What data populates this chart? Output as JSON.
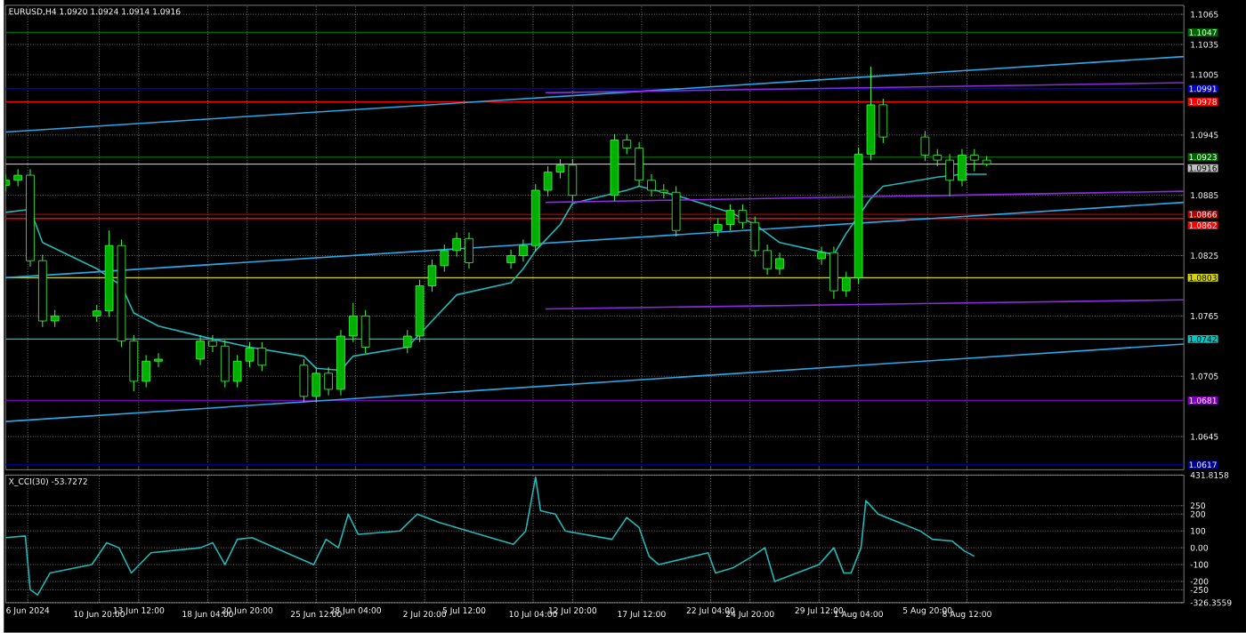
{
  "chart_data": [
    {
      "type": "candlestick",
      "title": "EURUSD,H4 1.0920 1.0924 1.0914 1.0916",
      "x": [
        "2024-06-04T12:00",
        "2024-06-05T08:00",
        "2024-06-06T04:00",
        "2024-06-07T00:00",
        "2024-06-07T20:00",
        "2024-06-10T16:00",
        "2024-06-11T12:00",
        "2024-06-12T08:00",
        "2024-06-13T04:00",
        "2024-06-14T00:00",
        "2024-06-14T20:00",
        "2024-06-17T16:00",
        "2024-06-18T12:00",
        "2024-06-19T08:00",
        "2024-06-20T04:00",
        "2024-06-21T00:00",
        "2024-06-21T20:00",
        "2024-06-24T16:00",
        "2024-06-25T12:00",
        "2024-06-26T08:00",
        "2024-06-27T04:00",
        "2024-06-28T00:00",
        "2024-06-28T20:00",
        "2024-07-01T16:00",
        "2024-07-02T12:00",
        "2024-07-03T08:00",
        "2024-07-04T04:00",
        "2024-07-05T00:00",
        "2024-07-05T20:00",
        "2024-07-08T16:00",
        "2024-07-09T12:00",
        "2024-07-10T08:00",
        "2024-07-11T04:00",
        "2024-07-12T00:00",
        "2024-07-12T20:00",
        "2024-07-15T16:00",
        "2024-07-16T12:00",
        "2024-07-17T08:00",
        "2024-07-18T04:00",
        "2024-07-19T00:00",
        "2024-07-19T20:00",
        "2024-07-22T16:00",
        "2024-07-23T12:00",
        "2024-07-24T08:00",
        "2024-07-25T04:00",
        "2024-07-26T00:00",
        "2024-07-26T20:00",
        "2024-07-29T16:00",
        "2024-07-30T12:00",
        "2024-07-31T08:00",
        "2024-08-01T04:00",
        "2024-08-02T00:00",
        "2024-08-02T20:00",
        "2024-08-05T16:00",
        "2024-08-06T12:00",
        "2024-08-07T08:00",
        "2024-08-08T04:00",
        "2024-08-09T00:00",
        "2024-08-09T20:00"
      ],
      "ohlc": [
        [
          1.0895,
          1.0906,
          1.0889,
          1.09
        ],
        [
          1.09,
          1.0911,
          1.0894,
          1.0905
        ],
        [
          1.0905,
          1.0911,
          1.0814,
          1.082
        ],
        [
          1.082,
          1.0826,
          1.0754,
          1.076
        ],
        [
          1.076,
          1.0771,
          1.0754,
          1.0765
        ],
        [
          1.0765,
          1.0776,
          1.0759,
          1.077
        ],
        [
          1.077,
          1.085,
          1.0764,
          1.0835
        ],
        [
          1.0835,
          1.0841,
          1.0734,
          1.074
        ],
        [
          1.074,
          1.0746,
          1.069,
          1.07
        ],
        [
          1.07,
          1.0726,
          1.0694,
          1.072
        ],
        [
          1.072,
          1.0728,
          1.0714,
          1.0722
        ],
        [
          1.0722,
          1.0746,
          1.0716,
          1.074
        ],
        [
          1.074,
          1.0746,
          1.0729,
          1.0735
        ],
        [
          1.0735,
          1.0741,
          1.0694,
          1.07
        ],
        [
          1.07,
          1.0726,
          1.0694,
          1.072
        ],
        [
          1.072,
          1.0739,
          1.0714,
          1.0733
        ],
        [
          1.0733,
          1.0739,
          1.071,
          1.0716
        ],
        [
          1.0716,
          1.0722,
          1.0679,
          1.0685
        ],
        [
          1.0685,
          1.0714,
          1.0679,
          1.0708
        ],
        [
          1.0708,
          1.0714,
          1.0686,
          1.0692
        ],
        [
          1.0692,
          1.0751,
          1.0686,
          1.0745
        ],
        [
          1.0745,
          1.0778,
          1.0739,
          1.0765
        ],
        [
          1.0765,
          1.0771,
          1.0728,
          1.0734
        ],
        [
          1.0734,
          1.0751,
          1.0728,
          1.0745
        ],
        [
          1.0745,
          1.0801,
          1.0739,
          1.0795
        ],
        [
          1.0795,
          1.0821,
          1.0789,
          1.0815
        ],
        [
          1.0815,
          1.0836,
          1.0809,
          1.083
        ],
        [
          1.083,
          1.0848,
          1.0824,
          1.0842
        ],
        [
          1.0842,
          1.0848,
          1.0812,
          1.0818
        ],
        [
          1.0818,
          1.0831,
          1.0812,
          1.0825
        ],
        [
          1.0825,
          1.0841,
          1.0819,
          1.0835
        ],
        [
          1.0835,
          1.0896,
          1.0829,
          1.089
        ],
        [
          1.089,
          1.0914,
          1.0884,
          1.0908
        ],
        [
          1.0908,
          1.0921,
          1.0902,
          1.0915
        ],
        [
          1.0915,
          1.0921,
          1.0879,
          1.0885
        ],
        [
          1.0885,
          1.0946,
          1.0879,
          1.094
        ],
        [
          1.094,
          1.0946,
          1.0926,
          1.0932
        ],
        [
          1.0932,
          1.0938,
          1.0894,
          1.09
        ],
        [
          1.09,
          1.0906,
          1.0884,
          1.089
        ],
        [
          1.089,
          1.0896,
          1.0882,
          1.0888
        ],
        [
          1.0888,
          1.0894,
          1.0844,
          1.085
        ],
        [
          1.085,
          1.0862,
          1.0844,
          1.0856
        ],
        [
          1.0856,
          1.0876,
          1.085,
          1.087
        ],
        [
          1.087,
          1.0876,
          1.0852,
          1.0858
        ],
        [
          1.0858,
          1.0864,
          1.0824,
          1.083
        ],
        [
          1.083,
          1.0836,
          1.0806,
          1.0812
        ],
        [
          1.0812,
          1.0828,
          1.0806,
          1.0822
        ],
        [
          1.0822,
          1.0834,
          1.0816,
          1.0828
        ],
        [
          1.0828,
          1.0834,
          1.0782,
          1.079
        ],
        [
          1.079,
          1.0809,
          1.0784,
          1.0803
        ],
        [
          1.0803,
          1.0932,
          1.0797,
          1.0926
        ],
        [
          1.0926,
          1.1013,
          1.092,
          1.0975
        ],
        [
          1.0975,
          1.0981,
          1.0937,
          1.0943
        ],
        [
          1.0943,
          1.0949,
          1.0919,
          1.0925
        ],
        [
          1.0925,
          1.0931,
          1.0914,
          1.092
        ],
        [
          1.092,
          1.0926,
          1.0884,
          1.09
        ],
        [
          1.09,
          1.0931,
          1.0894,
          1.0925
        ],
        [
          1.0925,
          1.0931,
          1.0909,
          1.092
        ],
        [
          1.092,
          1.0924,
          1.0914,
          1.0916
        ]
      ],
      "series": [
        {
          "type": "line",
          "color": "#20b8b8",
          "x": [
            "2024-06-04T12:00",
            "2024-06-06T04:00",
            "2024-06-07T00:00",
            "2024-06-10T16:00",
            "2024-06-12T08:00",
            "2024-06-13T04:00",
            "2024-06-14T20:00",
            "2024-06-18T12:00",
            "2024-06-21T00:00",
            "2024-06-24T16:00",
            "2024-06-25T12:00",
            "2024-06-27T04:00",
            "2024-06-28T00:00",
            "2024-07-01T16:00",
            "2024-07-03T08:00",
            "2024-07-05T00:00",
            "2024-07-08T16:00",
            "2024-07-09T12:00",
            "2024-07-10T08:00",
            "2024-07-12T00:00",
            "2024-07-12T20:00",
            "2024-07-16T12:00",
            "2024-07-17T08:00",
            "2024-07-19T20:00",
            "2024-07-23T12:00",
            "2024-07-25T04:00",
            "2024-07-26T20:00",
            "2024-07-30T12:00",
            "2024-07-31T08:00",
            "2024-08-02T00:00",
            "2024-08-02T20:00",
            "2024-08-06T12:00",
            "2024-08-08T04:00",
            "2024-08-09T20:00"
          ],
          "values": [
            1.0868,
            1.0871,
            1.0838,
            1.0812,
            1.0795,
            1.0768,
            1.0755,
            1.0742,
            1.0734,
            1.0725,
            1.0713,
            1.0711,
            1.0725,
            1.0734,
            1.076,
            1.0786,
            1.0798,
            1.0812,
            1.083,
            1.0856,
            1.0877,
            1.089,
            1.0894,
            1.0885,
            1.0868,
            1.0856,
            1.0838,
            1.0826,
            1.0847,
            1.0882,
            1.0894,
            1.0903,
            1.0906,
            1.0906
          ]
        },
        {
          "type": "line",
          "color": "#29a8e8",
          "x": [
            "2024-06-04T12:00",
            "2024-08-23T04:00"
          ],
          "values": [
            1.0948,
            1.1023
          ]
        },
        {
          "type": "line",
          "color": "#29a8e8",
          "x": [
            "2024-06-04T12:00",
            "2024-08-23T04:00"
          ],
          "values": [
            1.0803,
            1.0878
          ]
        },
        {
          "type": "line",
          "color": "#29a8e8",
          "x": [
            "2024-06-04T12:00",
            "2024-08-23T04:00"
          ],
          "values": [
            1.066,
            1.0737
          ]
        },
        {
          "type": "line",
          "color": "#8a2be2",
          "x": [
            "2024-07-11T00:00",
            "2024-08-23T04:00"
          ],
          "values": [
            1.0987,
            1.0997
          ]
        },
        {
          "type": "line",
          "color": "#8a2be2",
          "x": [
            "2024-07-11T00:00",
            "2024-08-23T04:00"
          ],
          "values": [
            1.0878,
            1.0889
          ]
        },
        {
          "type": "line",
          "color": "#8a2be2",
          "x": [
            "2024-07-11T00:00",
            "2024-08-23T04:00"
          ],
          "values": [
            1.0772,
            1.0781
          ]
        }
      ],
      "ref_lines": [
        {
          "axis": "y",
          "value": 1.1047,
          "label": "1.1047",
          "color": "#006400"
        },
        {
          "axis": "y",
          "value": 1.0991,
          "label": "1.0991",
          "color": "#0000cd"
        },
        {
          "axis": "y",
          "value": 1.0978,
          "label": "1.0978",
          "color": "#ff0000"
        },
        {
          "axis": "y",
          "value": 1.0923,
          "label": "1.0923",
          "color": "#006400"
        },
        {
          "axis": "y",
          "value": 1.0916,
          "label": "1.0916",
          "color": "#c0c0c0"
        },
        {
          "axis": "y",
          "value": 1.0866,
          "label": "1.0866",
          "color": "#b00000"
        },
        {
          "axis": "y",
          "value": 1.0862,
          "label": "1.0862",
          "color": "#ff0000"
        },
        {
          "axis": "y",
          "value": 1.0803,
          "label": "1.0803",
          "color": "#d4d400"
        },
        {
          "axis": "y",
          "value": 1.0742,
          "label": "1.0742",
          "color": "#00c8c8"
        },
        {
          "axis": "y",
          "value": 1.0681,
          "label": "1.0681",
          "color": "#8000c0"
        },
        {
          "axis": "y",
          "value": 1.0617,
          "label": "1.0617",
          "color": "#000090"
        }
      ],
      "xlim": [
        "2024-06-04T12:00",
        "2024-08-23T04:00"
      ],
      "ylim": [
        1.0612,
        1.1074
      ],
      "xticks": [
        {
          "value": "2024-06-06T00:00",
          "label": null
        },
        {
          "value": "2024-06-10T20:00",
          "label": null
        },
        {
          "value": "2024-06-13T12:00",
          "label": null
        },
        {
          "value": "2024-06-18T04:00",
          "label": null
        },
        {
          "value": "2024-06-20T20:00",
          "label": null
        },
        {
          "value": "2024-06-25T12:00",
          "label": null
        },
        {
          "value": "2024-06-28T04:00",
          "label": null
        },
        {
          "value": "2024-07-02T20:00",
          "label": null
        },
        {
          "value": "2024-07-05T12:00",
          "label": null
        },
        {
          "value": "2024-07-10T04:00",
          "label": null
        },
        {
          "value": "2024-07-12T20:00",
          "label": null
        },
        {
          "value": "2024-07-17T12:00",
          "label": null
        },
        {
          "value": "2024-07-22T04:00",
          "label": null
        },
        {
          "value": "2024-07-24T20:00",
          "label": null
        },
        {
          "value": "2024-07-29T12:00",
          "label": null
        },
        {
          "value": "2024-08-01T04:00",
          "label": null
        },
        {
          "value": "2024-08-05T20:00",
          "label": null
        },
        {
          "value": "2024-08-08T12:00",
          "label": null
        }
      ],
      "yticks": [
        1.1065,
        1.1035,
        1.1005,
        1.0945,
        1.0885,
        1.0825,
        1.0765,
        1.0705,
        1.0645
      ],
      "grid": true,
      "tick_labels": "y"
    },
    {
      "type": "line",
      "title": "X_CCI(30) -53.7272",
      "color": "#20b8b8",
      "x": [
        "2024-06-04T12:00",
        "2024-06-05T20:00",
        "2024-06-06T04:00",
        "2024-06-06T16:00",
        "2024-06-07T12:00",
        "2024-06-10T08:00",
        "2024-06-11T08:00",
        "2024-06-12T04:00",
        "2024-06-13T00:00",
        "2024-06-14T08:00",
        "2024-06-17T16:00",
        "2024-06-18T12:00",
        "2024-06-19T08:00",
        "2024-06-20T04:00",
        "2024-06-21T04:00",
        "2024-06-24T00:00",
        "2024-06-25T08:00",
        "2024-06-26T04:00",
        "2024-06-27T00:00",
        "2024-06-27T16:00",
        "2024-06-28T08:00",
        "2024-07-01T04:00",
        "2024-07-02T08:00",
        "2024-07-03T20:00",
        "2024-07-05T00:00",
        "2024-07-08T20:00",
        "2024-07-09T16:00",
        "2024-07-10T08:00",
        "2024-07-10T16:00",
        "2024-07-11T16:00",
        "2024-07-12T08:00",
        "2024-07-15T12:00",
        "2024-07-16T12:00",
        "2024-07-17T08:00",
        "2024-07-18T00:00",
        "2024-07-18T16:00",
        "2024-07-22T00:00",
        "2024-07-22T12:00",
        "2024-07-23T16:00",
        "2024-07-25T00:00",
        "2024-07-25T20:00",
        "2024-07-26T12:00",
        "2024-07-29T12:00",
        "2024-07-30T12:00",
        "2024-07-31T04:00",
        "2024-07-31T16:00",
        "2024-08-01T08:00",
        "2024-08-01T16:00",
        "2024-08-02T12:00",
        "2024-08-05T08:00",
        "2024-08-06T04:00",
        "2024-08-07T12:00",
        "2024-08-08T08:00",
        "2024-08-09T00:00"
      ],
      "values": [
        60,
        70,
        -250,
        -280,
        -150,
        -100,
        30,
        0,
        -150,
        -30,
        0,
        30,
        -100,
        50,
        60,
        -50,
        -100,
        50,
        0,
        200,
        80,
        100,
        200,
        150,
        120,
        20,
        100,
        420,
        220,
        200,
        100,
        50,
        180,
        120,
        -50,
        -100,
        -30,
        -150,
        -120,
        -50,
        0,
        -200,
        -100,
        0,
        -150,
        -150,
        0,
        280,
        200,
        100,
        50,
        40,
        -20,
        -50
      ],
      "xlim": [
        "2024-06-04T12:00",
        "2024-08-23T04:00"
      ],
      "ylim": [
        -326.3559,
        431.8158
      ],
      "xticks": [
        {
          "value": "2024-06-06T00:00",
          "label": "6 Jun 2024"
        },
        {
          "value": "2024-06-10T20:00",
          "label": "10 Jun 20:00"
        },
        {
          "value": "2024-06-13T12:00",
          "label": "13 Jun 12:00"
        },
        {
          "value": "2024-06-18T04:00",
          "label": "18 Jun 04:00"
        },
        {
          "value": "2024-06-20T20:00",
          "label": "20 Jun 20:00"
        },
        {
          "value": "2024-06-25T12:00",
          "label": "25 Jun 12:00"
        },
        {
          "value": "2024-06-28T04:00",
          "label": "28 Jun 04:00"
        },
        {
          "value": "2024-07-02T20:00",
          "label": "2 Jul 20:00"
        },
        {
          "value": "2024-07-05T12:00",
          "label": "5 Jul 12:00"
        },
        {
          "value": "2024-07-10T04:00",
          "label": "10 Jul 04:00"
        },
        {
          "value": "2024-07-12T20:00",
          "label": "12 Jul 20:00"
        },
        {
          "value": "2024-07-17T12:00",
          "label": "17 Jul 12:00"
        },
        {
          "value": "2024-07-22T04:00",
          "label": "22 Jul 04:00"
        },
        {
          "value": "2024-07-24T20:00",
          "label": "24 Jul 20:00"
        },
        {
          "value": "2024-07-29T12:00",
          "label": "29 Jul 12:00"
        },
        {
          "value": "2024-08-01T04:00",
          "label": "1 Aug 04:00"
        },
        {
          "value": "2024-08-05T20:00",
          "label": "5 Aug 20:00"
        },
        {
          "value": "2024-08-08T12:00",
          "label": "8 Aug 12:00"
        }
      ],
      "yticks": [
        431.8158,
        250,
        200,
        100,
        {
          "value": 0,
          "label": "0.00"
        },
        -100,
        -200,
        -250,
        -326.3559
      ],
      "grid": true
    }
  ]
}
